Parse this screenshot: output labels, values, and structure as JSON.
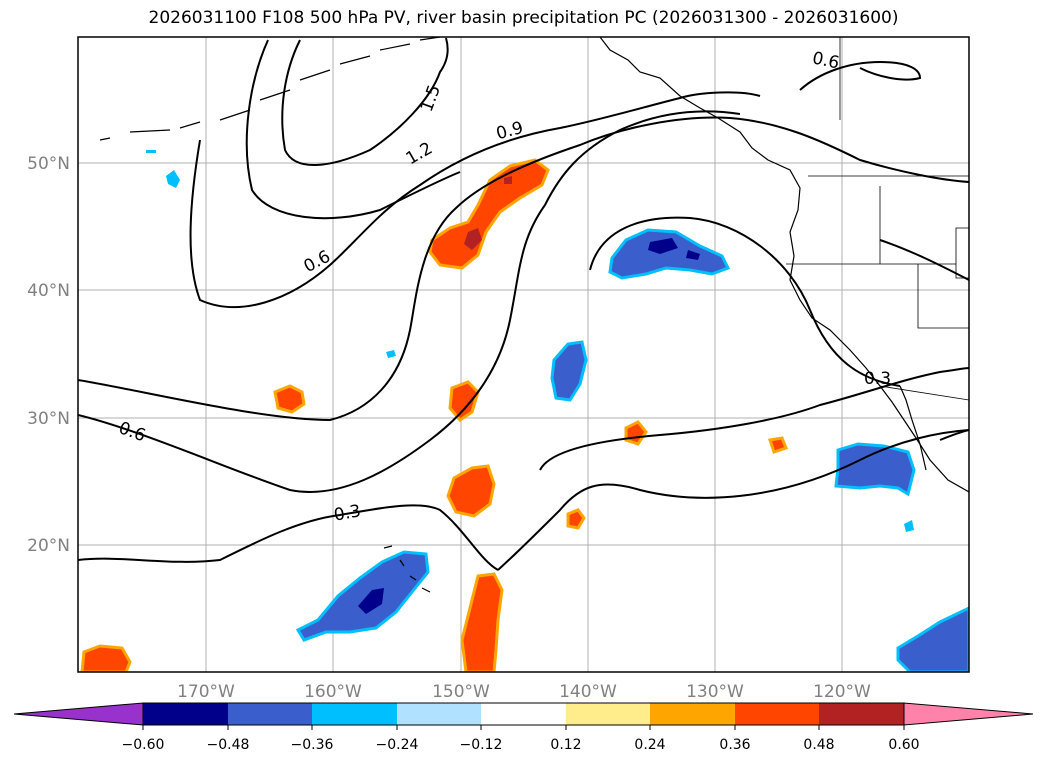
{
  "title": "2026031100 F108 500 hPa PV, river basin precipitation PC (2026031300 - 2026031600)",
  "lat_labels": [
    "50°N",
    "40°N",
    "30°N",
    "20°N"
  ],
  "lon_labels": [
    "170°W",
    "160°W",
    "150°W",
    "140°W",
    "130°W",
    "120°W"
  ],
  "contour_labels": [
    "1.5",
    "1.2",
    "0.9",
    "0.6",
    "0.6",
    "0.6",
    "0.3",
    "0.3"
  ],
  "colorbar": {
    "ticks": [
      "−0.60",
      "−0.48",
      "−0.36",
      "−0.24",
      "−0.12",
      "0.12",
      "0.24",
      "0.36",
      "0.48",
      "0.60"
    ],
    "colors": {
      "below": "#9932cc",
      "n060": "#00008b",
      "n048": "#3a5fcd",
      "n036": "#00bfff",
      "n024": "#b0e2ff",
      "neutral": "#ffffff",
      "p012": "#ffec8b",
      "p024": "#ffa500",
      "p036": "#ff4500",
      "p048": "#b22222",
      "above": "#ff82ab"
    }
  }
}
